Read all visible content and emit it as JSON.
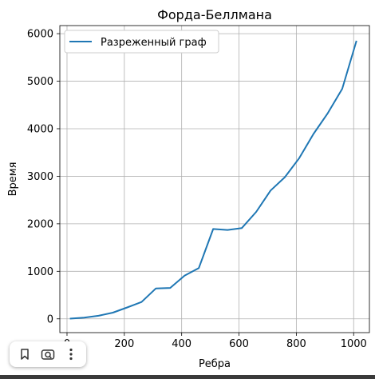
{
  "chart_data": {
    "type": "line",
    "title": "Форда-Беллмана",
    "xlabel": "Ребра",
    "ylabel": "Время",
    "xlim": [
      -25,
      1055
    ],
    "ylim": [
      -290,
      6170
    ],
    "xticks": [
      0,
      200,
      400,
      600,
      800,
      1000
    ],
    "yticks": [
      0,
      1000,
      2000,
      3000,
      4000,
      5000,
      6000
    ],
    "grid": true,
    "legend_position": "upper-left",
    "series": [
      {
        "name": "Разреженный граф",
        "color": "#1f77b4",
        "x": [
          10,
          60,
          110,
          160,
          210,
          260,
          310,
          360,
          410,
          460,
          510,
          560,
          610,
          660,
          710,
          760,
          810,
          860,
          910,
          960,
          1010
        ],
        "y": [
          5,
          25,
          65,
          130,
          240,
          355,
          640,
          650,
          910,
          1070,
          1890,
          1870,
          1910,
          2250,
          2700,
          2980,
          3380,
          3890,
          4330,
          4840,
          5850
        ]
      }
    ]
  },
  "toolbar": {
    "buttons": [
      {
        "name": "bookmark",
        "icon": "bookmark-icon"
      },
      {
        "name": "lens",
        "icon": "camera-search-icon"
      },
      {
        "name": "more",
        "icon": "more-vertical-icon"
      }
    ]
  }
}
